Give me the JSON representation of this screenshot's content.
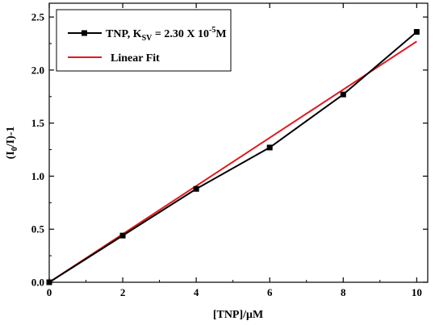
{
  "chart_data": {
    "type": "line",
    "xlabel": "[TNP]/μM",
    "ylabel": {
      "pre": "(I",
      "sub": "0",
      "post": "/I)-1"
    },
    "xlim": [
      0,
      10.3
    ],
    "ylim": [
      0,
      2.63
    ],
    "xticks": [
      0,
      2,
      4,
      6,
      8,
      10
    ],
    "xtick_labels": [
      "0",
      "2",
      "4",
      "6",
      "8",
      "10"
    ],
    "yticks": [
      0.0,
      0.5,
      1.0,
      1.5,
      2.0,
      2.5
    ],
    "ytick_labels": [
      "0.0",
      "0.5",
      "1.0",
      "1.5",
      "2.0",
      "2.5"
    ],
    "grid": false,
    "legend_position": "top-left",
    "series": [
      {
        "name": "TNP, K_SV = 2.30 X 10^-5 M",
        "legend_parts": {
          "pre": "TNP, K",
          "sub": "SV",
          "mid": " = 2.30 X 10",
          "sup": "-5",
          "post": "M"
        },
        "color": "#000000",
        "marker": "square",
        "x": [
          0,
          2,
          4,
          6,
          8,
          10
        ],
        "y": [
          0.0,
          0.44,
          0.88,
          1.27,
          1.77,
          2.36
        ]
      },
      {
        "name": "Linear Fit",
        "legend_parts": {
          "pre": "Linear Fit"
        },
        "color": "#e0191f",
        "marker": "none",
        "x": [
          0,
          10
        ],
        "y": [
          0.0,
          2.27
        ]
      }
    ]
  }
}
